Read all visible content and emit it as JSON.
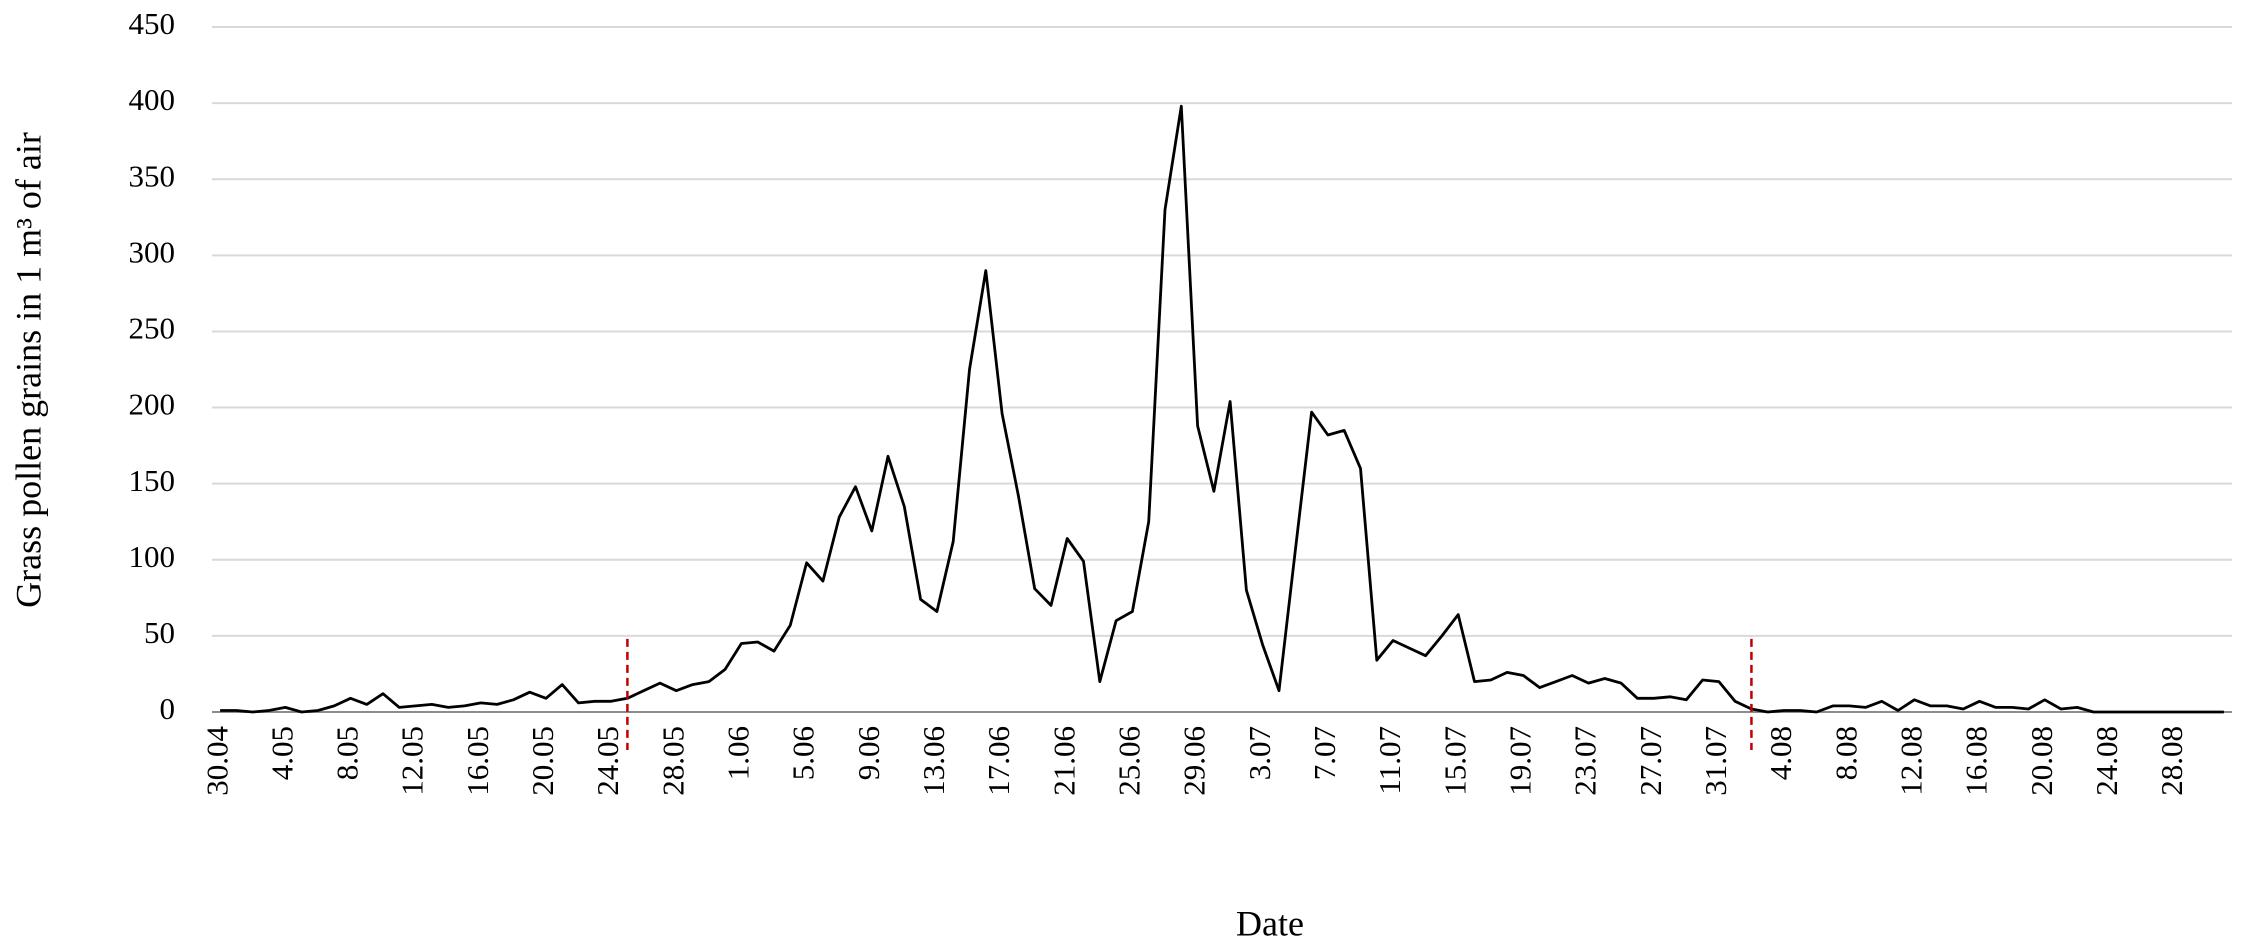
{
  "chart_data": {
    "type": "line",
    "xlabel": "Date",
    "ylabel": "Grass pollen grains in 1 m³ of air",
    "categories": [
      "30.04",
      null,
      null,
      null,
      "4.05",
      null,
      null,
      null,
      "8.05",
      null,
      null,
      null,
      "12.05",
      null,
      null,
      null,
      "16.05",
      null,
      null,
      null,
      "20.05",
      null,
      null,
      null,
      "24.05",
      null,
      null,
      null,
      "28.05",
      null,
      null,
      null,
      "1.06",
      null,
      null,
      null,
      "5.06",
      null,
      null,
      null,
      "9.06",
      null,
      null,
      null,
      "13.06",
      null,
      null,
      null,
      "17.06",
      null,
      null,
      null,
      "21.06",
      null,
      null,
      null,
      "25.06",
      null,
      null,
      null,
      "29.06",
      null,
      null,
      null,
      "3.07",
      null,
      null,
      null,
      "7.07",
      null,
      null,
      null,
      "11.07",
      null,
      null,
      null,
      "15.07",
      null,
      null,
      null,
      "19.07",
      null,
      null,
      null,
      "23.07",
      null,
      null,
      null,
      "27.07",
      null,
      null,
      null,
      "31.07",
      null,
      null,
      null,
      "4.08",
      null,
      null,
      null,
      "8.08",
      null,
      null,
      null,
      "12.08",
      null,
      null,
      null,
      "16.08",
      null,
      null,
      null,
      "20.08",
      null,
      null,
      null,
      "24.08",
      null,
      null,
      null,
      "28.08",
      null,
      null,
      null
    ],
    "values": [
      1,
      1,
      0,
      1,
      3,
      0,
      1,
      4,
      9,
      5,
      12,
      3,
      4,
      5,
      3,
      4,
      6,
      5,
      8,
      13,
      9,
      18,
      6,
      7,
      7,
      9,
      14,
      19,
      14,
      18,
      20,
      28,
      45,
      46,
      40,
      57,
      98,
      86,
      128,
      148,
      119,
      168,
      135,
      74,
      66,
      112,
      225,
      290,
      196,
      142,
      81,
      70,
      114,
      99,
      20,
      60,
      66,
      125,
      330,
      398,
      188,
      145,
      204,
      80,
      44,
      14,
      106,
      197,
      182,
      185,
      160,
      34,
      47,
      42,
      37,
      50,
      64,
      20,
      21,
      26,
      24,
      16,
      20,
      24,
      19,
      22,
      19,
      9,
      9,
      10,
      8,
      21,
      20,
      7,
      2,
      0,
      1,
      1,
      0,
      4,
      4,
      3,
      7,
      1,
      8,
      4,
      4,
      2,
      7,
      3,
      3,
      2,
      8,
      2,
      3,
      0,
      0,
      0,
      0,
      0,
      0,
      0,
      0,
      0
    ],
    "color": "#000000",
    "ylim": [
      0,
      450
    ],
    "yticks": [
      0,
      50,
      100,
      150,
      200,
      250,
      300,
      350,
      400,
      450
    ],
    "grid": true,
    "season_markers": {
      "indices": [
        25,
        94
      ],
      "color": "#c00000"
    }
  }
}
